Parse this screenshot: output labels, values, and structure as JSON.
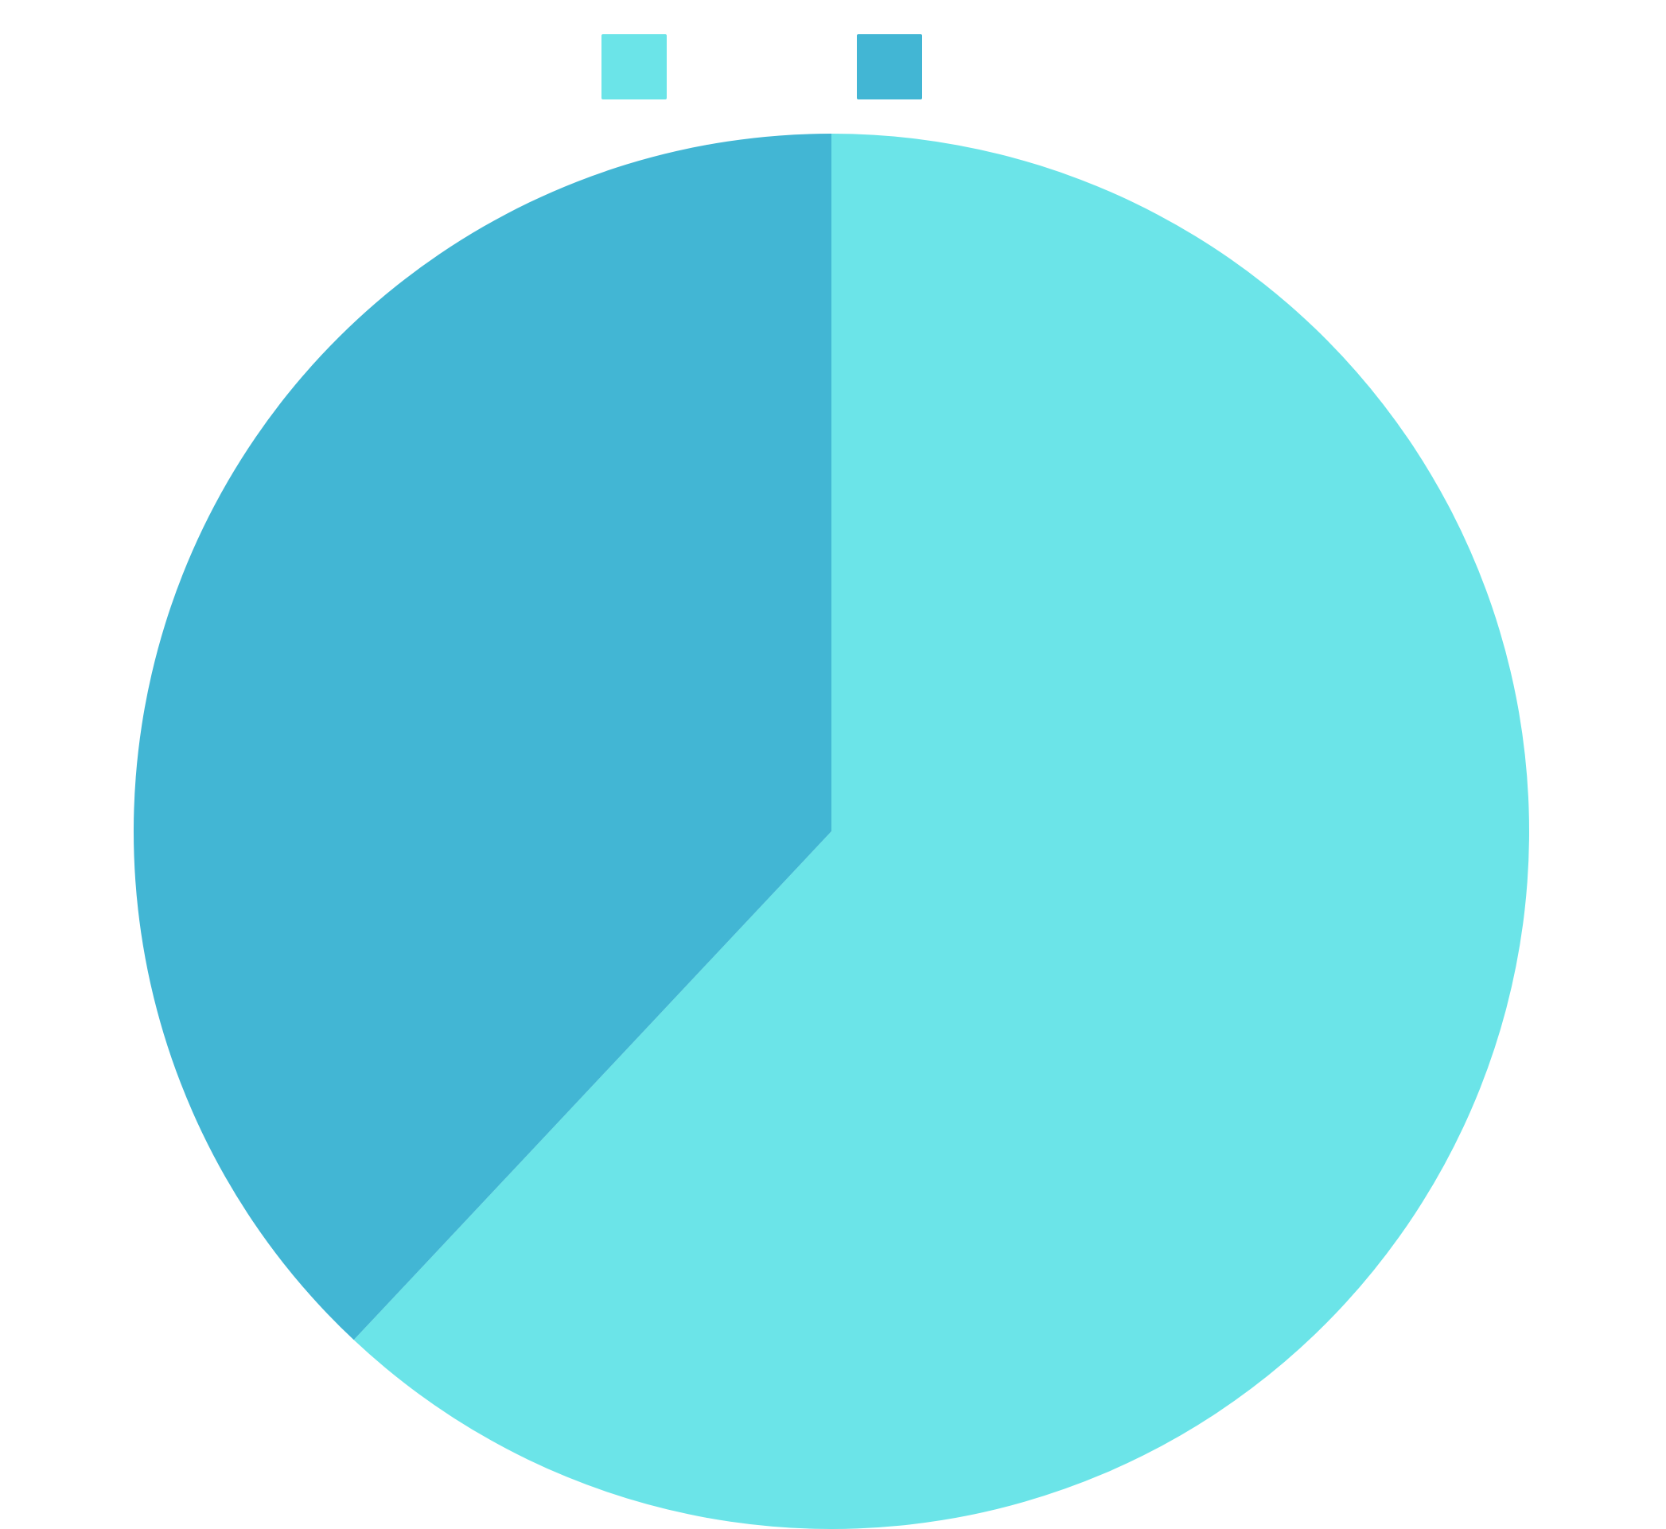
{
  "chart_data": {
    "type": "pie",
    "title": "",
    "start_angle": "top",
    "direction": "clockwise",
    "legend_position": "top-center",
    "slices": [
      {
        "name": "",
        "value": 62,
        "color": "#6BE4E8"
      },
      {
        "name": "",
        "value": 38,
        "color": "#42B6D4"
      }
    ]
  }
}
